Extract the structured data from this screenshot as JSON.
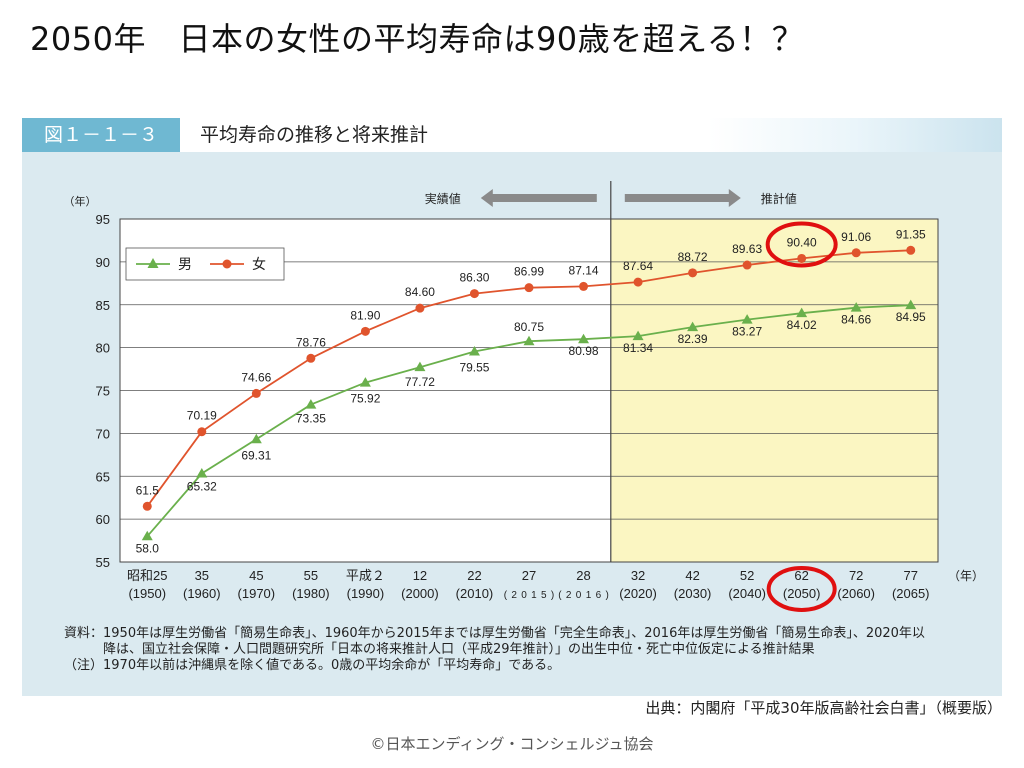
{
  "title": "2050年　日本の女性の平均寿命は90歳を超える！？",
  "figure": {
    "label": "図１－１－３",
    "title": "平均寿命の推移と将来推計"
  },
  "annotations": {
    "actual": "実績値",
    "projected": "推計値"
  },
  "notes": [
    "資料：1950年は厚生労働省「簡易生命表」、1960年から2015年までは厚生労働省「完全生命表」、2016年は厚生労働省「簡易生命表」、2020年以",
    "　　　降は、国立社会保障・人口問題研究所「日本の将来推計人口（平成29年推計）」の出生中位・死亡中位仮定による推計結果",
    "（注）1970年以前は沖縄県を除く値である。0歳の平均余命が「平均寿命」である。"
  ],
  "source": "出典：内閣府「平成30年版高齢社会白書」（概要版）",
  "copyright": "©日本エンディング・コンシェルジュ協会",
  "colors": {
    "male": "#6ab04c",
    "female": "#e0542d",
    "projection_bg": "#fbf6c2",
    "circle": "#e01010",
    "arrow": "#8a8a8a"
  },
  "chart_data": {
    "type": "line",
    "title": "平均寿命の推移と将来推計",
    "ylabel": "（年）",
    "xlabel": "（年）",
    "ylim": [
      55,
      95
    ],
    "yticks": [
      55,
      60,
      65,
      70,
      75,
      80,
      85,
      90,
      95
    ],
    "x": [
      1950,
      1960,
      1970,
      1980,
      1990,
      2000,
      2010,
      2015,
      2016,
      2020,
      2030,
      2040,
      2050,
      2060,
      2065
    ],
    "x_labels_top": [
      "昭和25",
      "35",
      "45",
      "55",
      "平成２",
      "12",
      "22",
      "27",
      "28",
      "32",
      "42",
      "52",
      "62",
      "72",
      "77"
    ],
    "x_labels_bottom": [
      "(1950)",
      "(1960)",
      "(1970)",
      "(1980)",
      "(1990)",
      "(2000)",
      "(2010)",
      "(2015)",
      "(2016)",
      "(2020)",
      "(2030)",
      "(2040)",
      "(2050)",
      "(2060)",
      "(2065)"
    ],
    "series": [
      {
        "name": "男",
        "values": [
          58.0,
          65.32,
          69.31,
          73.35,
          75.92,
          77.72,
          79.55,
          80.75,
          80.98,
          81.34,
          82.39,
          83.27,
          84.02,
          84.66,
          84.95
        ],
        "labels": [
          "58.0",
          "65.32",
          "69.31",
          "73.35",
          "75.92",
          "77.72",
          "79.55",
          "80.75",
          "80.98",
          "81.34",
          "82.39",
          "83.27",
          "84.02",
          "84.66",
          "84.95"
        ]
      },
      {
        "name": "女",
        "values": [
          61.5,
          70.19,
          74.66,
          78.76,
          81.9,
          84.6,
          86.3,
          86.99,
          87.14,
          87.64,
          88.72,
          89.63,
          90.4,
          91.06,
          91.35
        ],
        "labels": [
          "61.5",
          "70.19",
          "74.66",
          "78.76",
          "81.90",
          "84.60",
          "86.30",
          "86.99",
          "87.14",
          "87.64",
          "88.72",
          "89.63",
          "90.40",
          "91.06",
          "91.35"
        ]
      }
    ],
    "projection_start_index": 9,
    "highlight_index": 12,
    "legend": "top-left",
    "grid": true
  }
}
